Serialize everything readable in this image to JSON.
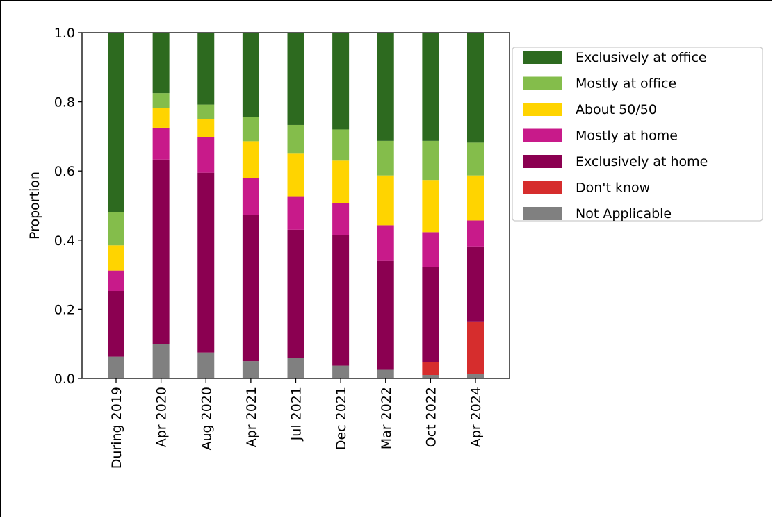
{
  "chart_data": {
    "type": "stacked-bar",
    "y_label": "Proportion",
    "categories": [
      "During 2019",
      "Apr 2020",
      "Aug 2020",
      "Apr 2021",
      "Jul 2021",
      "Dec 2021",
      "Mar 2022",
      "Oct 2022",
      "Apr 2024"
    ],
    "series": [
      {
        "name": "Not Applicable",
        "color": "#808080",
        "values": [
          0.063,
          0.1,
          0.075,
          0.05,
          0.06,
          0.037,
          0.025,
          0.01,
          0.012
        ]
      },
      {
        "name": "Don't know",
        "color": "#d62d2d",
        "values": [
          0,
          0,
          0,
          0,
          0,
          0,
          0,
          0.038,
          0.151
        ]
      },
      {
        "name": "Exclusively at home",
        "color": "#8b0051",
        "values": [
          0.19,
          0.533,
          0.52,
          0.422,
          0.37,
          0.378,
          0.315,
          0.274,
          0.219
        ]
      },
      {
        "name": "Mostly at home",
        "color": "#c81a8a",
        "values": [
          0.059,
          0.092,
          0.103,
          0.108,
          0.097,
          0.092,
          0.103,
          0.101,
          0.075
        ]
      },
      {
        "name": "About 50/50",
        "color": "#ffd400",
        "values": [
          0.073,
          0.058,
          0.052,
          0.106,
          0.123,
          0.123,
          0.144,
          0.151,
          0.13
        ]
      },
      {
        "name": "Mostly at office",
        "color": "#84bd4b",
        "values": [
          0.095,
          0.042,
          0.042,
          0.07,
          0.083,
          0.09,
          0.1,
          0.113,
          0.095
        ]
      },
      {
        "name": "Exclusively at office",
        "color": "#2d6a1f",
        "values": [
          0.52,
          0.175,
          0.208,
          0.244,
          0.267,
          0.28,
          0.313,
          0.313,
          0.318
        ]
      }
    ],
    "ylim": [
      0,
      1.0
    ],
    "yticks": [
      {
        "value": 0,
        "label": "0.0"
      },
      {
        "value": 0.2,
        "label": "0.2"
      },
      {
        "value": 0.4,
        "label": "0.4"
      },
      {
        "value": 0.6,
        "label": "0.6"
      },
      {
        "value": 0.8,
        "label": "0.8"
      },
      {
        "value": 1.0,
        "label": "1.0"
      }
    ],
    "legend": "upper-right-outside"
  }
}
